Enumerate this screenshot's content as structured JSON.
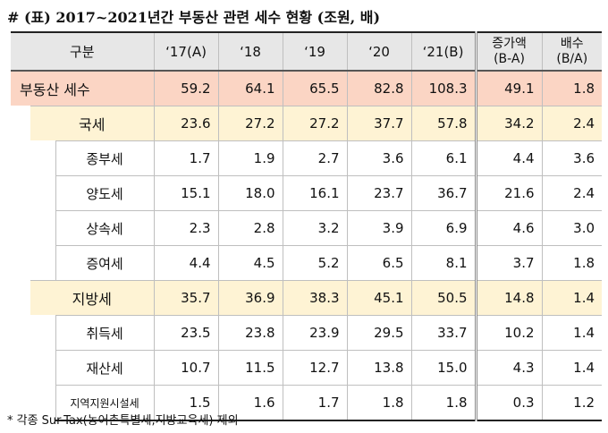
{
  "title": "# (표) 2017~2021년간 부동산 관련 세수 현황 (조원, 배)",
  "header": {
    "category": "구분",
    "years": [
      "‘17(A)",
      "‘18",
      "‘19",
      "‘20",
      "‘21(B)"
    ],
    "increase": [
      "증가액",
      "(B-A)"
    ],
    "ratio": [
      "배수",
      "(B/A)"
    ]
  },
  "rows": {
    "total": {
      "label": "부동산 세수",
      "values": [
        "59.2",
        "64.1",
        "65.5",
        "82.8",
        "108.3",
        "49.1",
        "1.8"
      ]
    },
    "national": {
      "label": "국세",
      "values": [
        "23.6",
        "27.2",
        "27.2",
        "37.7",
        "57.8",
        "34.2",
        "2.4"
      ]
    },
    "comp": {
      "label": "종부세",
      "values": [
        "1.7",
        "1.9",
        "2.7",
        "3.6",
        "6.1",
        "4.4",
        "3.6"
      ]
    },
    "transfer": {
      "label": "양도세",
      "values": [
        "15.1",
        "18.0",
        "16.1",
        "23.7",
        "36.7",
        "21.6",
        "2.4"
      ]
    },
    "inherit": {
      "label": "상속세",
      "values": [
        "2.3",
        "2.8",
        "3.2",
        "3.9",
        "6.9",
        "4.6",
        "3.0"
      ]
    },
    "gift": {
      "label": "증여세",
      "values": [
        "4.4",
        "4.5",
        "5.2",
        "6.5",
        "8.1",
        "3.7",
        "1.8"
      ]
    },
    "local": {
      "label": "지방세",
      "values": [
        "35.7",
        "36.9",
        "38.3",
        "45.1",
        "50.5",
        "14.8",
        "1.4"
      ]
    },
    "acq": {
      "label": "취득세",
      "values": [
        "23.5",
        "23.8",
        "23.9",
        "29.5",
        "33.7",
        "10.2",
        "1.4"
      ]
    },
    "property": {
      "label": "재산세",
      "values": [
        "10.7",
        "11.5",
        "12.7",
        "13.8",
        "15.0",
        "4.3",
        "1.4"
      ]
    },
    "regional": {
      "label": "지역지원시설세",
      "values": [
        "1.5",
        "1.6",
        "1.7",
        "1.8",
        "1.8",
        "0.3",
        "1.2"
      ]
    }
  },
  "note": "* 각종 Sur-Tax(농어촌특별세,지방교육세) 제외"
}
